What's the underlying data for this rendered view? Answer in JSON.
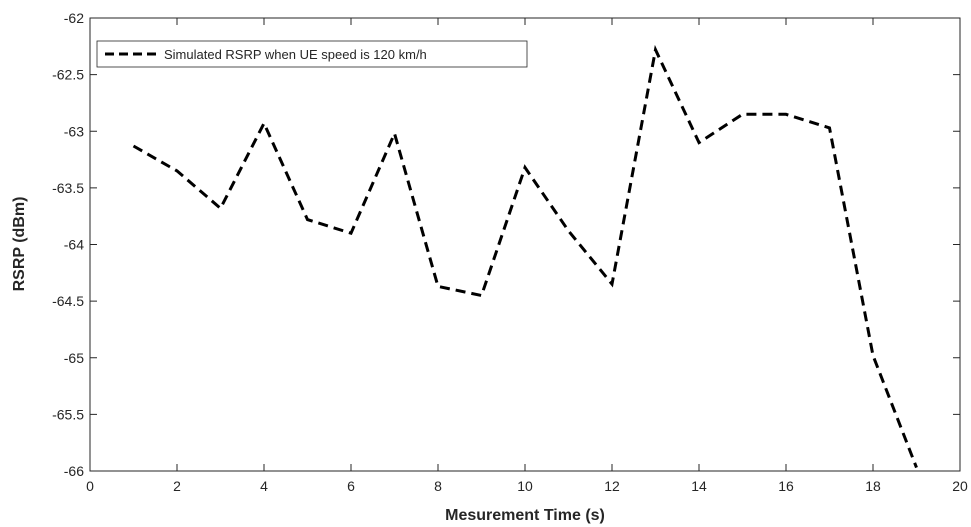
{
  "chart_data": {
    "type": "line",
    "xlabel": "Mesurement Time (s)",
    "ylabel": "RSRP (dBm)",
    "xlim": [
      0,
      20
    ],
    "ylim": [
      -66,
      -62
    ],
    "xticks": [
      0,
      2,
      4,
      6,
      8,
      10,
      12,
      14,
      16,
      18,
      20
    ],
    "yticks": [
      -62,
      -62.5,
      -63,
      -63.5,
      -64,
      -64.5,
      -65,
      -65.5,
      -66
    ],
    "grid": false,
    "legend_position": "top-left",
    "series": [
      {
        "name": "Simulated RSRP when UE speed is 120 km/h",
        "line_style": "dashed",
        "color": "#000000",
        "x": [
          1,
          2,
          3,
          4,
          5,
          6,
          7,
          8,
          9,
          10,
          11,
          12,
          13,
          14,
          15,
          16,
          17,
          18,
          19
        ],
        "y": [
          -63.13,
          -63.35,
          -63.68,
          -62.93,
          -63.78,
          -63.9,
          -63.02,
          -64.37,
          -64.45,
          -63.32,
          -63.88,
          -64.35,
          -62.28,
          -63.1,
          -62.85,
          -62.85,
          -62.97,
          -64.98,
          -65.97
        ]
      }
    ]
  }
}
